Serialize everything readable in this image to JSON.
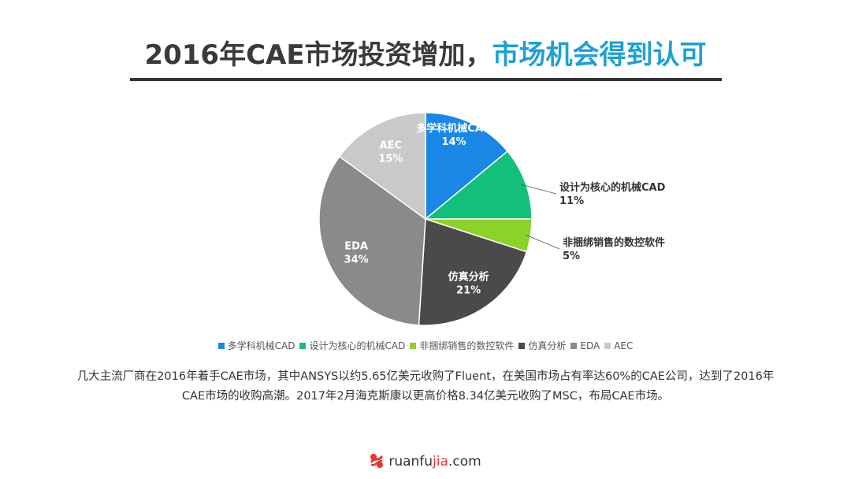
{
  "title": {
    "part1": "2016年CAE市场投资增加，",
    "part2": "市场机会得到认可"
  },
  "colors": {
    "title_accent": "#1ea0d6",
    "brand_red": "#e8352f"
  },
  "chart_data": {
    "type": "pie",
    "start_angle_deg": 90,
    "direction": "clockwise",
    "legend_position": "bottom",
    "slices": [
      {
        "name": "多学科机械CAD",
        "value": 14,
        "label": "14%",
        "color": "#1a86e6",
        "label_text_color": "#ffffff",
        "label_placement": "inside"
      },
      {
        "name": "设计为核心的机械CAD",
        "value": 11,
        "label": "11%",
        "color": "#12c07c",
        "label_text_color": "#333333",
        "label_placement": "outside"
      },
      {
        "name": "非捆绑销售的数控软件",
        "value": 5,
        "label": "5%",
        "color": "#8bd22a",
        "label_text_color": "#333333",
        "label_placement": "outside"
      },
      {
        "name": "仿真分析",
        "value": 21,
        "label": "21%",
        "color": "#4a4a4a",
        "label_text_color": "#ffffff",
        "label_placement": "inside"
      },
      {
        "name": "EDA",
        "value": 34,
        "label": "34%",
        "color": "#8a8a8a",
        "label_text_color": "#ffffff",
        "label_placement": "inside"
      },
      {
        "name": "AEC",
        "value": 15,
        "label": "15%",
        "color": "#c9c9c9",
        "label_text_color": "#ffffff",
        "label_placement": "inside"
      }
    ]
  },
  "caption": "几大主流厂商在2016年着手CAE市场，其中ANSYS以约5.65亿美元收购了Fluent，在美国市场占有率达60%的CAE公司，达到了2016年CAE市场的收购高潮。2017年2月海克斯康以更高价格8.34亿美元收购了MSC，布局CAE市场。",
  "footer": {
    "brand_prefix": "ruanfu",
    "brand_accent": "jia",
    "brand_suffix": ".com"
  }
}
